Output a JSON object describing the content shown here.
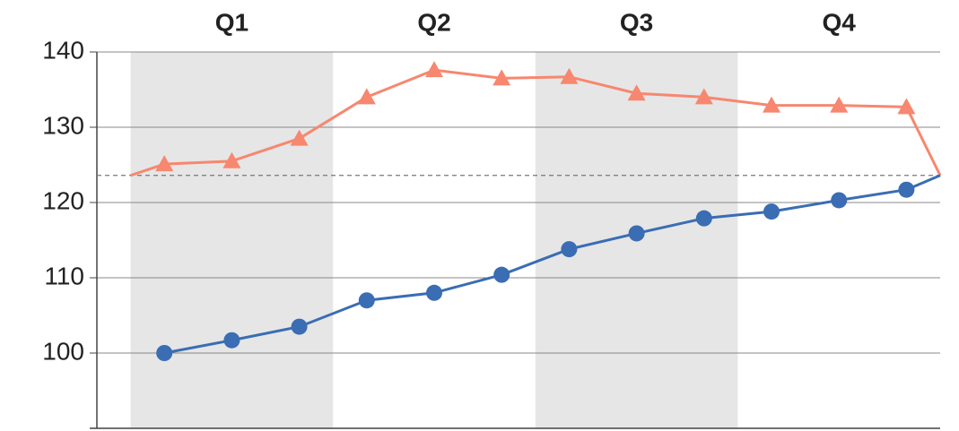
{
  "chart_data": {
    "type": "line",
    "x": [
      0,
      0.5,
      1.5,
      2.5,
      3.5,
      4.5,
      5.5,
      6.5,
      7.5,
      8.5,
      9.5,
      10.5,
      11.5,
      12
    ],
    "series": [
      {
        "color": "#f7876f",
        "marker": "triangle",
        "values": [
          123.6,
          125.1,
          125.5,
          128.5,
          134.0,
          137.6,
          136.5,
          136.7,
          134.5,
          134.0,
          132.9,
          132.9,
          132.7,
          123.6
        ]
      },
      {
        "color": "#3a6db3",
        "marker": "circle",
        "values": [
          null,
          100,
          101.7,
          103.5,
          107,
          108,
          110.4,
          113.8,
          115.9,
          117.9,
          118.8,
          120.3,
          121.7,
          123.6
        ]
      }
    ],
    "bands": [
      {
        "label": "Q1",
        "start": 0,
        "end": 3,
        "shaded": true
      },
      {
        "label": "Q2",
        "start": 3,
        "end": 6,
        "shaded": false
      },
      {
        "label": "Q3",
        "start": 6,
        "end": 9,
        "shaded": true
      },
      {
        "label": "Q4",
        "start": 9,
        "end": 12,
        "shaded": false
      }
    ],
    "reference_line": 123.6,
    "xlim": [
      -0.5,
      12
    ],
    "ylim": [
      90,
      140
    ],
    "yticks": [
      100,
      110,
      120,
      130,
      140
    ],
    "grid": true
  }
}
